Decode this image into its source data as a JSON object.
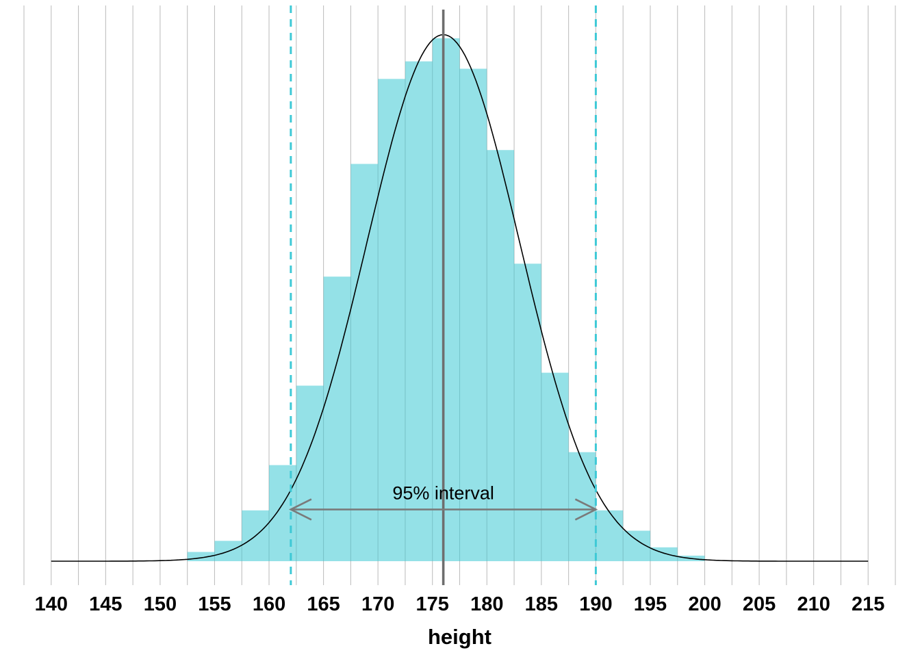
{
  "chart_data": {
    "type": "histogram",
    "title": "",
    "xlabel": "height",
    "ylabel": "",
    "xlim": [
      137.5,
      217.5
    ],
    "ylim": [
      0,
      0.06
    ],
    "x_ticks": [
      140,
      145,
      150,
      155,
      160,
      165,
      170,
      175,
      180,
      185,
      190,
      195,
      200,
      205,
      210,
      215
    ],
    "gridline_step": 2.5,
    "grid": true,
    "legend": "none",
    "bin_width": 2.5,
    "bin_left": [
      152.5,
      155,
      157.5,
      160,
      162.5,
      165,
      167.5,
      170,
      172.5,
      175,
      177.5,
      180,
      182.5,
      185,
      187.5,
      190,
      192.5,
      195,
      197.5
    ],
    "bin_density": [
      0.001,
      0.0022,
      0.0055,
      0.0104,
      0.019,
      0.0308,
      0.043,
      0.0522,
      0.0541,
      0.0566,
      0.0533,
      0.0445,
      0.0322,
      0.0204,
      0.0118,
      0.0055,
      0.0033,
      0.0015,
      0.0006
    ],
    "density_curve": {
      "distribution": "normal",
      "mean": 176,
      "sd": 7,
      "peak_density": 0.057,
      "range": [
        140,
        215
      ]
    },
    "mean_line_x": 176,
    "interval": {
      "low": 162,
      "high": 190,
      "label": "95% interval",
      "arrow_y_density": 0.0056
    },
    "colors": {
      "bar_fill": "#3cc8d4",
      "bar_opacity": "0.55",
      "interval_dash": "#3ec9d6",
      "mean_line": "#6e6e6e",
      "arrow": "#7a7a7a",
      "curve": "#000000",
      "gridline": "#bfbfbf",
      "text": "#000000",
      "background": "#ffffff"
    }
  }
}
